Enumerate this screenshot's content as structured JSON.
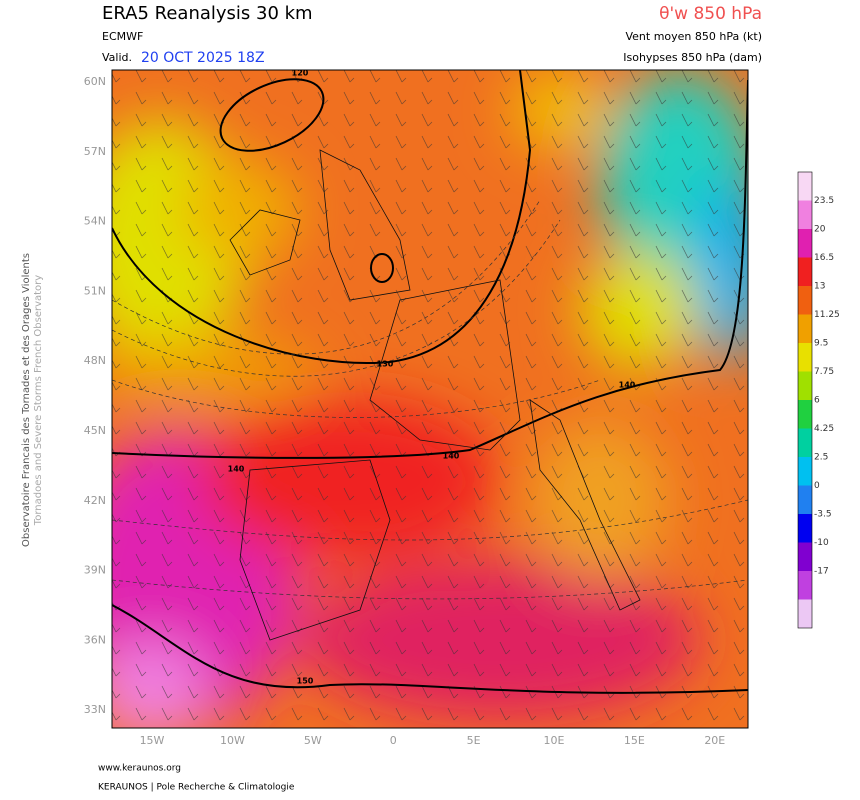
{
  "header": {
    "title": "ERA5 Reanalysis 30 km",
    "model": "ECMWF",
    "valid_prefix": "Valid.",
    "valid_date": "20 OCT 2025 18Z",
    "parameter": "θ'w 850 hPa",
    "line2": "Vent moyen 850 hPa (kt)",
    "line3": "Isohypses 850 hPa (dam)"
  },
  "side_text": {
    "line1": "Observatoire Francais des Tornades et des Orages Violents",
    "line2": "Tornadoes and Severe Storms French Observatory"
  },
  "map": {
    "lat_labels": [
      "60N",
      "57N",
      "54N",
      "51N",
      "48N",
      "45N",
      "42N",
      "39N",
      "36N",
      "33N"
    ],
    "lon_labels": [
      "15W",
      "10W",
      "5W",
      "0",
      "5E",
      "10E",
      "15E",
      "20E"
    ],
    "contour_labels": [
      "120",
      "130",
      "140",
      "140",
      "140",
      "150"
    ]
  },
  "colorbar": {
    "labels": [
      "23.5",
      "20",
      "16.5",
      "13",
      "11.25",
      "9.5",
      "7.75",
      "6",
      "4.25",
      "2.5",
      "0",
      "-3.5",
      "-10",
      "-17"
    ]
  },
  "footer": {
    "url": "www.keraunos.org",
    "credit": "KERAUNOS | Pole Recherche & Climatologie"
  }
}
